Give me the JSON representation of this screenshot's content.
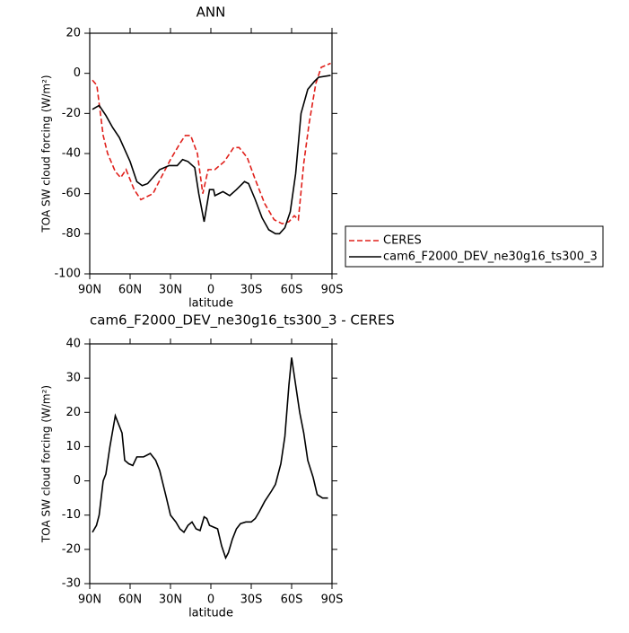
{
  "chart_data": [
    {
      "type": "line",
      "title": "ANN",
      "xlabel": "latitude",
      "ylabel": "TOA SW cloud forcing (W/m²)",
      "xlim": [
        90,
        -90
      ],
      "ylim": [
        20,
        -100
      ],
      "xticks": [
        {
          "value": 90,
          "label": "90N"
        },
        {
          "value": 60,
          "label": "60N"
        },
        {
          "value": 30,
          "label": "30N"
        },
        0,
        {
          "value": -30,
          "label": "30S"
        },
        {
          "value": -60,
          "label": "60S"
        },
        {
          "value": -90,
          "label": "90S"
        }
      ],
      "yticks": [
        20,
        0,
        -20,
        -40,
        -60,
        -80,
        -100
      ],
      "legend": "right",
      "series": [
        {
          "name": "CERES",
          "color": "#e0201b",
          "dash": true,
          "x": [
            88,
            84.7,
            80,
            76.7,
            71,
            67,
            63,
            57,
            52,
            43,
            37,
            30,
            23,
            19,
            15,
            10,
            6,
            2,
            -3,
            -10,
            -17,
            -21,
            -27,
            -33,
            -40,
            -47,
            -53,
            -58,
            -62,
            -65,
            -69,
            -73,
            -78,
            -82,
            -89
          ],
          "values": [
            -3.4,
            -6,
            -31,
            -40,
            -49,
            -52,
            -48,
            -58,
            -63,
            -60,
            -52,
            -43,
            -35,
            -31,
            -31,
            -40,
            -60,
            -48,
            -48,
            -44,
            -37,
            -37,
            -42,
            -53,
            -65,
            -73,
            -75,
            -74,
            -71,
            -73,
            -45,
            -25,
            -5,
            3,
            5
          ]
        },
        {
          "name": "cam6_F2000_DEV_ne30g16_ts300_3",
          "color": "#000000",
          "dash": false,
          "x": [
            88,
            83,
            78,
            73,
            68,
            60,
            55,
            51,
            47,
            38,
            31,
            25,
            21,
            17,
            12,
            9,
            5,
            1,
            -2,
            -3,
            -9,
            -14,
            -19,
            -25,
            -28,
            -33,
            -38,
            -43,
            -48,
            -51,
            -55,
            -59,
            -63,
            -67,
            -72,
            -77,
            -80,
            -89
          ],
          "values": [
            -18,
            -16,
            -21,
            -27,
            -32,
            -44,
            -54,
            -56,
            -55,
            -48,
            -46,
            -46,
            -43,
            -44,
            -47,
            -60,
            -74,
            -58,
            -58,
            -61,
            -59,
            -61,
            -58,
            -54,
            -55,
            -63,
            -72,
            -78,
            -80,
            -80,
            -77,
            -69,
            -50,
            -20,
            -8,
            -4,
            -2,
            -1
          ]
        }
      ]
    },
    {
      "type": "line",
      "title": "cam6_F2000_DEV_ne30g16_ts300_3 - CERES",
      "xlabel": "latitude",
      "ylabel": "TOA SW cloud forcing (W/m²)",
      "xlim": [
        90,
        -90
      ],
      "ylim": [
        40,
        -30
      ],
      "xticks": [
        {
          "value": 90,
          "label": "90N"
        },
        {
          "value": 60,
          "label": "60N"
        },
        {
          "value": 30,
          "label": "30N"
        },
        0,
        {
          "value": -30,
          "label": "30S"
        },
        {
          "value": -60,
          "label": "60S"
        },
        {
          "value": -90,
          "label": "90S"
        }
      ],
      "yticks": [
        40,
        30,
        20,
        10,
        0,
        -10,
        -20,
        -30
      ],
      "series": [
        {
          "color": "#000000",
          "dash": false,
          "x": [
            88,
            85,
            83,
            80,
            78,
            75,
            71,
            66,
            64,
            61,
            58,
            55,
            50,
            45,
            41,
            38,
            33,
            30,
            26,
            23,
            20,
            17,
            14,
            11,
            8,
            5,
            3,
            1,
            -5,
            -8,
            -11,
            -13,
            -16,
            -19,
            -22,
            -26,
            -30,
            -33,
            -36,
            -40,
            -45,
            -48,
            -52,
            -55,
            -58,
            -60,
            -63,
            -66,
            -69,
            -72,
            -76,
            -79,
            -83,
            -87
          ],
          "values": [
            -15,
            -13,
            -10,
            0,
            2,
            10,
            19,
            14,
            6,
            5,
            4.5,
            7,
            7,
            8,
            6,
            3,
            -5,
            -10,
            -12,
            -14,
            -15,
            -13,
            -12,
            -14,
            -14.5,
            -10.5,
            -11,
            -13,
            -14,
            -19,
            -22.5,
            -21,
            -17,
            -14,
            -12.5,
            -12,
            -12,
            -11,
            -9,
            -6,
            -3,
            -1,
            5,
            13,
            28,
            36,
            28,
            20,
            14,
            6,
            1,
            -4,
            -5,
            -5
          ]
        }
      ]
    }
  ]
}
